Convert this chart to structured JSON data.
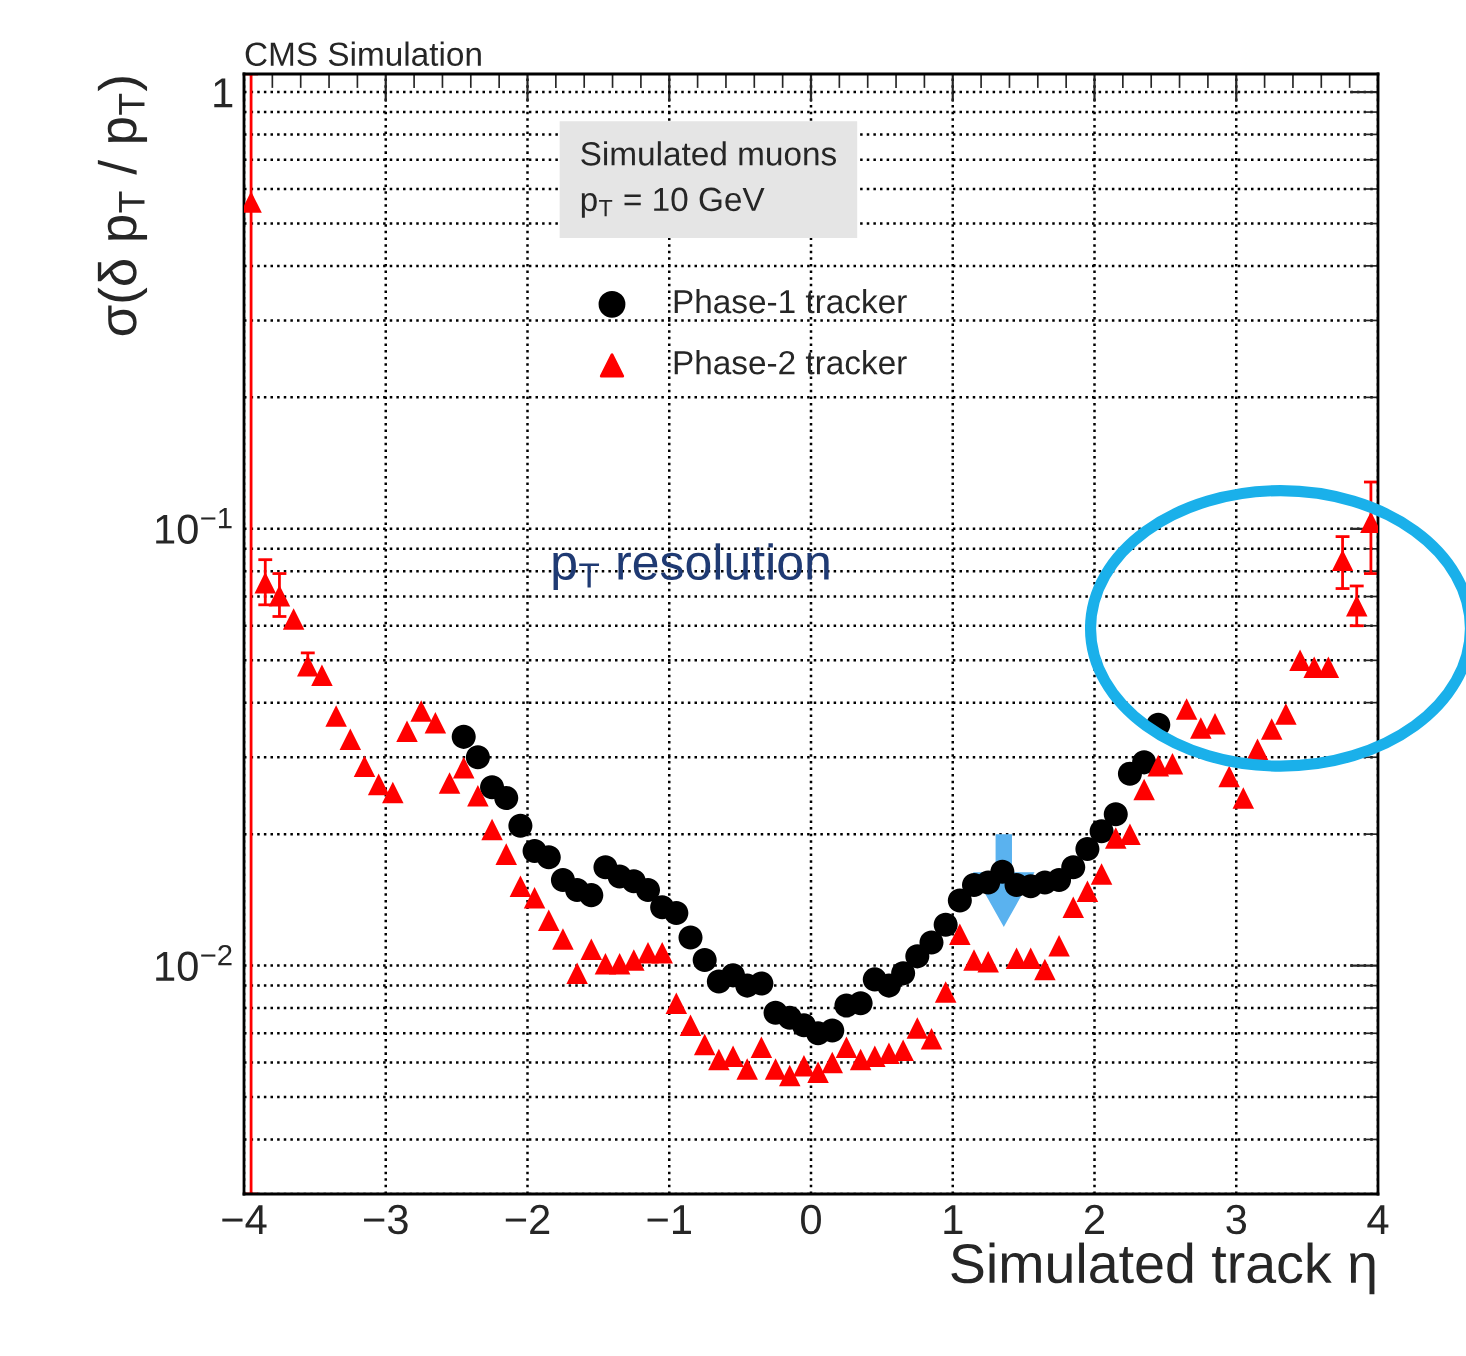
{
  "chart_data": {
    "type": "scatter",
    "title": "CMS Simulation",
    "xlabel": "Simulated track η",
    "ylabel": "σ(δ p$_{T}$ / p$_{T}$)",
    "xlim": [
      -4,
      4
    ],
    "ylim": [
      0.003,
      1.1
    ],
    "log": "y",
    "grid": true,
    "legend": "top",
    "xticks": [
      {
        "value": -4,
        "label": "−4"
      },
      {
        "value": -3,
        "label": "−3"
      },
      {
        "value": -2,
        "label": "−2"
      },
      {
        "value": -1,
        "label": "−1"
      },
      0,
      1,
      2,
      3,
      4
    ],
    "yticks": [
      {
        "value": 0.01,
        "label": "10$^{−2}$"
      },
      {
        "value": 0.1,
        "label": "10$^{−1}$"
      },
      1
    ],
    "annotations": [
      "Simulated muons\np$_{T}$ = 10 GeV",
      "p$_{T}$ resolution"
    ],
    "series": [
      {
        "name": "Phase-1 tracker",
        "color": "#000000",
        "marker": "circle",
        "x": [
          -2.45,
          -2.35,
          -2.25,
          -2.15,
          -2.05,
          -1.95,
          -1.85,
          -1.75,
          -1.65,
          -1.55,
          -1.45,
          -1.35,
          -1.25,
          -1.15,
          -1.05,
          -0.95,
          -0.85,
          -0.75,
          -0.65,
          -0.55,
          -0.45,
          -0.35,
          -0.25,
          -0.15,
          -0.05,
          0.05,
          0.15,
          0.25,
          0.35,
          0.45,
          0.55,
          0.65,
          0.75,
          0.85,
          0.95,
          1.05,
          1.15,
          1.25,
          1.35,
          1.45,
          1.55,
          1.65,
          1.75,
          1.85,
          1.95,
          2.05,
          2.15,
          2.25,
          2.35,
          2.45
        ],
        "values": [
          0.0334,
          0.03,
          0.0256,
          0.0242,
          0.0209,
          0.0183,
          0.0177,
          0.0157,
          0.0149,
          0.0145,
          0.0168,
          0.016,
          0.0156,
          0.0149,
          0.0136,
          0.0132,
          0.0116,
          0.0103,
          0.0092,
          0.0095,
          0.009,
          0.0091,
          0.0078,
          0.0076,
          0.0073,
          0.007,
          0.0071,
          0.0081,
          0.0082,
          0.0093,
          0.009,
          0.0096,
          0.0105,
          0.0113,
          0.0124,
          0.0141,
          0.0153,
          0.0155,
          0.0164,
          0.0153,
          0.0152,
          0.0155,
          0.0157,
          0.0168,
          0.0185,
          0.0203,
          0.0222,
          0.0275,
          0.0292,
          0.0356
        ]
      },
      {
        "name": "Phase-2 tracker",
        "color": "#ff0000",
        "marker": "triangle",
        "x": [
          -3.95,
          -3.85,
          -3.75,
          -3.65,
          -3.55,
          -3.45,
          -3.35,
          -3.25,
          -3.15,
          -3.05,
          -2.95,
          -2.85,
          -2.75,
          -2.65,
          -2.55,
          -2.45,
          -2.35,
          -2.25,
          -2.15,
          -2.05,
          -1.95,
          -1.85,
          -1.75,
          -1.65,
          -1.55,
          -1.45,
          -1.35,
          -1.25,
          -1.15,
          -1.05,
          -0.95,
          -0.85,
          -0.75,
          -0.65,
          -0.55,
          -0.45,
          -0.35,
          -0.25,
          -0.15,
          -0.05,
          0.05,
          0.15,
          0.25,
          0.35,
          0.45,
          0.55,
          0.65,
          0.75,
          0.85,
          0.95,
          1.05,
          1.15,
          1.25,
          1.35,
          1.45,
          1.55,
          1.65,
          1.75,
          1.85,
          1.95,
          2.05,
          2.15,
          2.25,
          2.35,
          2.45,
          2.55,
          2.65,
          2.75,
          2.85,
          2.95,
          3.05,
          3.15,
          3.25,
          3.35,
          3.45,
          3.55,
          3.65,
          3.75,
          3.85,
          3.95
        ],
        "values": [
          0.56,
          0.0753,
          0.0703,
          0.0622,
          0.0486,
          0.0462,
          0.0373,
          0.033,
          0.0286,
          0.026,
          0.0249,
          0.0344,
          0.0383,
          0.036,
          0.0262,
          0.0284,
          0.0245,
          0.0205,
          0.018,
          0.0152,
          0.0143,
          0.0127,
          0.0115,
          0.0096,
          0.0109,
          0.0101,
          0.0101,
          0.0103,
          0.0107,
          0.0107,
          0.0082,
          0.0073,
          0.0066,
          0.0061,
          0.0062,
          0.0058,
          0.0065,
          0.0058,
          0.0056,
          0.0059,
          0.0057,
          0.006,
          0.0065,
          0.0061,
          0.0062,
          0.0063,
          0.0064,
          0.0072,
          0.0068,
          0.0087,
          0.0118,
          0.0103,
          0.0102,
          null,
          0.0104,
          0.0104,
          0.0098,
          0.0111,
          0.0136,
          0.0148,
          0.0162,
          0.0196,
          0.02,
          0.0253,
          0.0287,
          0.029,
          0.0387,
          0.035,
          0.0358,
          0.0271,
          0.0242,
          0.0313,
          0.0348,
          0.0377,
          0.05,
          0.0482,
          0.0482,
          0.0847,
          0.0667,
          0.1035
        ],
        "errors": [
          [
            0.003,
            1.1
          ],
          [
            0.067,
            0.085
          ],
          [
            0.063,
            0.079
          ],
          null,
          [
            0.047,
            0.052
          ],
          null,
          null,
          null,
          null,
          null,
          null,
          null,
          null,
          null,
          null,
          null,
          null,
          null,
          null,
          null,
          null,
          null,
          null,
          null,
          null,
          null,
          null,
          null,
          null,
          null,
          null,
          null,
          null,
          null,
          null,
          null,
          null,
          null,
          null,
          null,
          null,
          null,
          null,
          null,
          null,
          null,
          null,
          null,
          null,
          null,
          null,
          null,
          null,
          null,
          null,
          null,
          null,
          null,
          null,
          null,
          null,
          null,
          null,
          null,
          null,
          null,
          null,
          null,
          null,
          null,
          null,
          null,
          null,
          null,
          null,
          null,
          null,
          [
            0.073,
            0.096
          ],
          [
            0.06,
            0.074
          ],
          [
            0.079,
            0.128
          ]
        ]
      }
    ]
  }
}
